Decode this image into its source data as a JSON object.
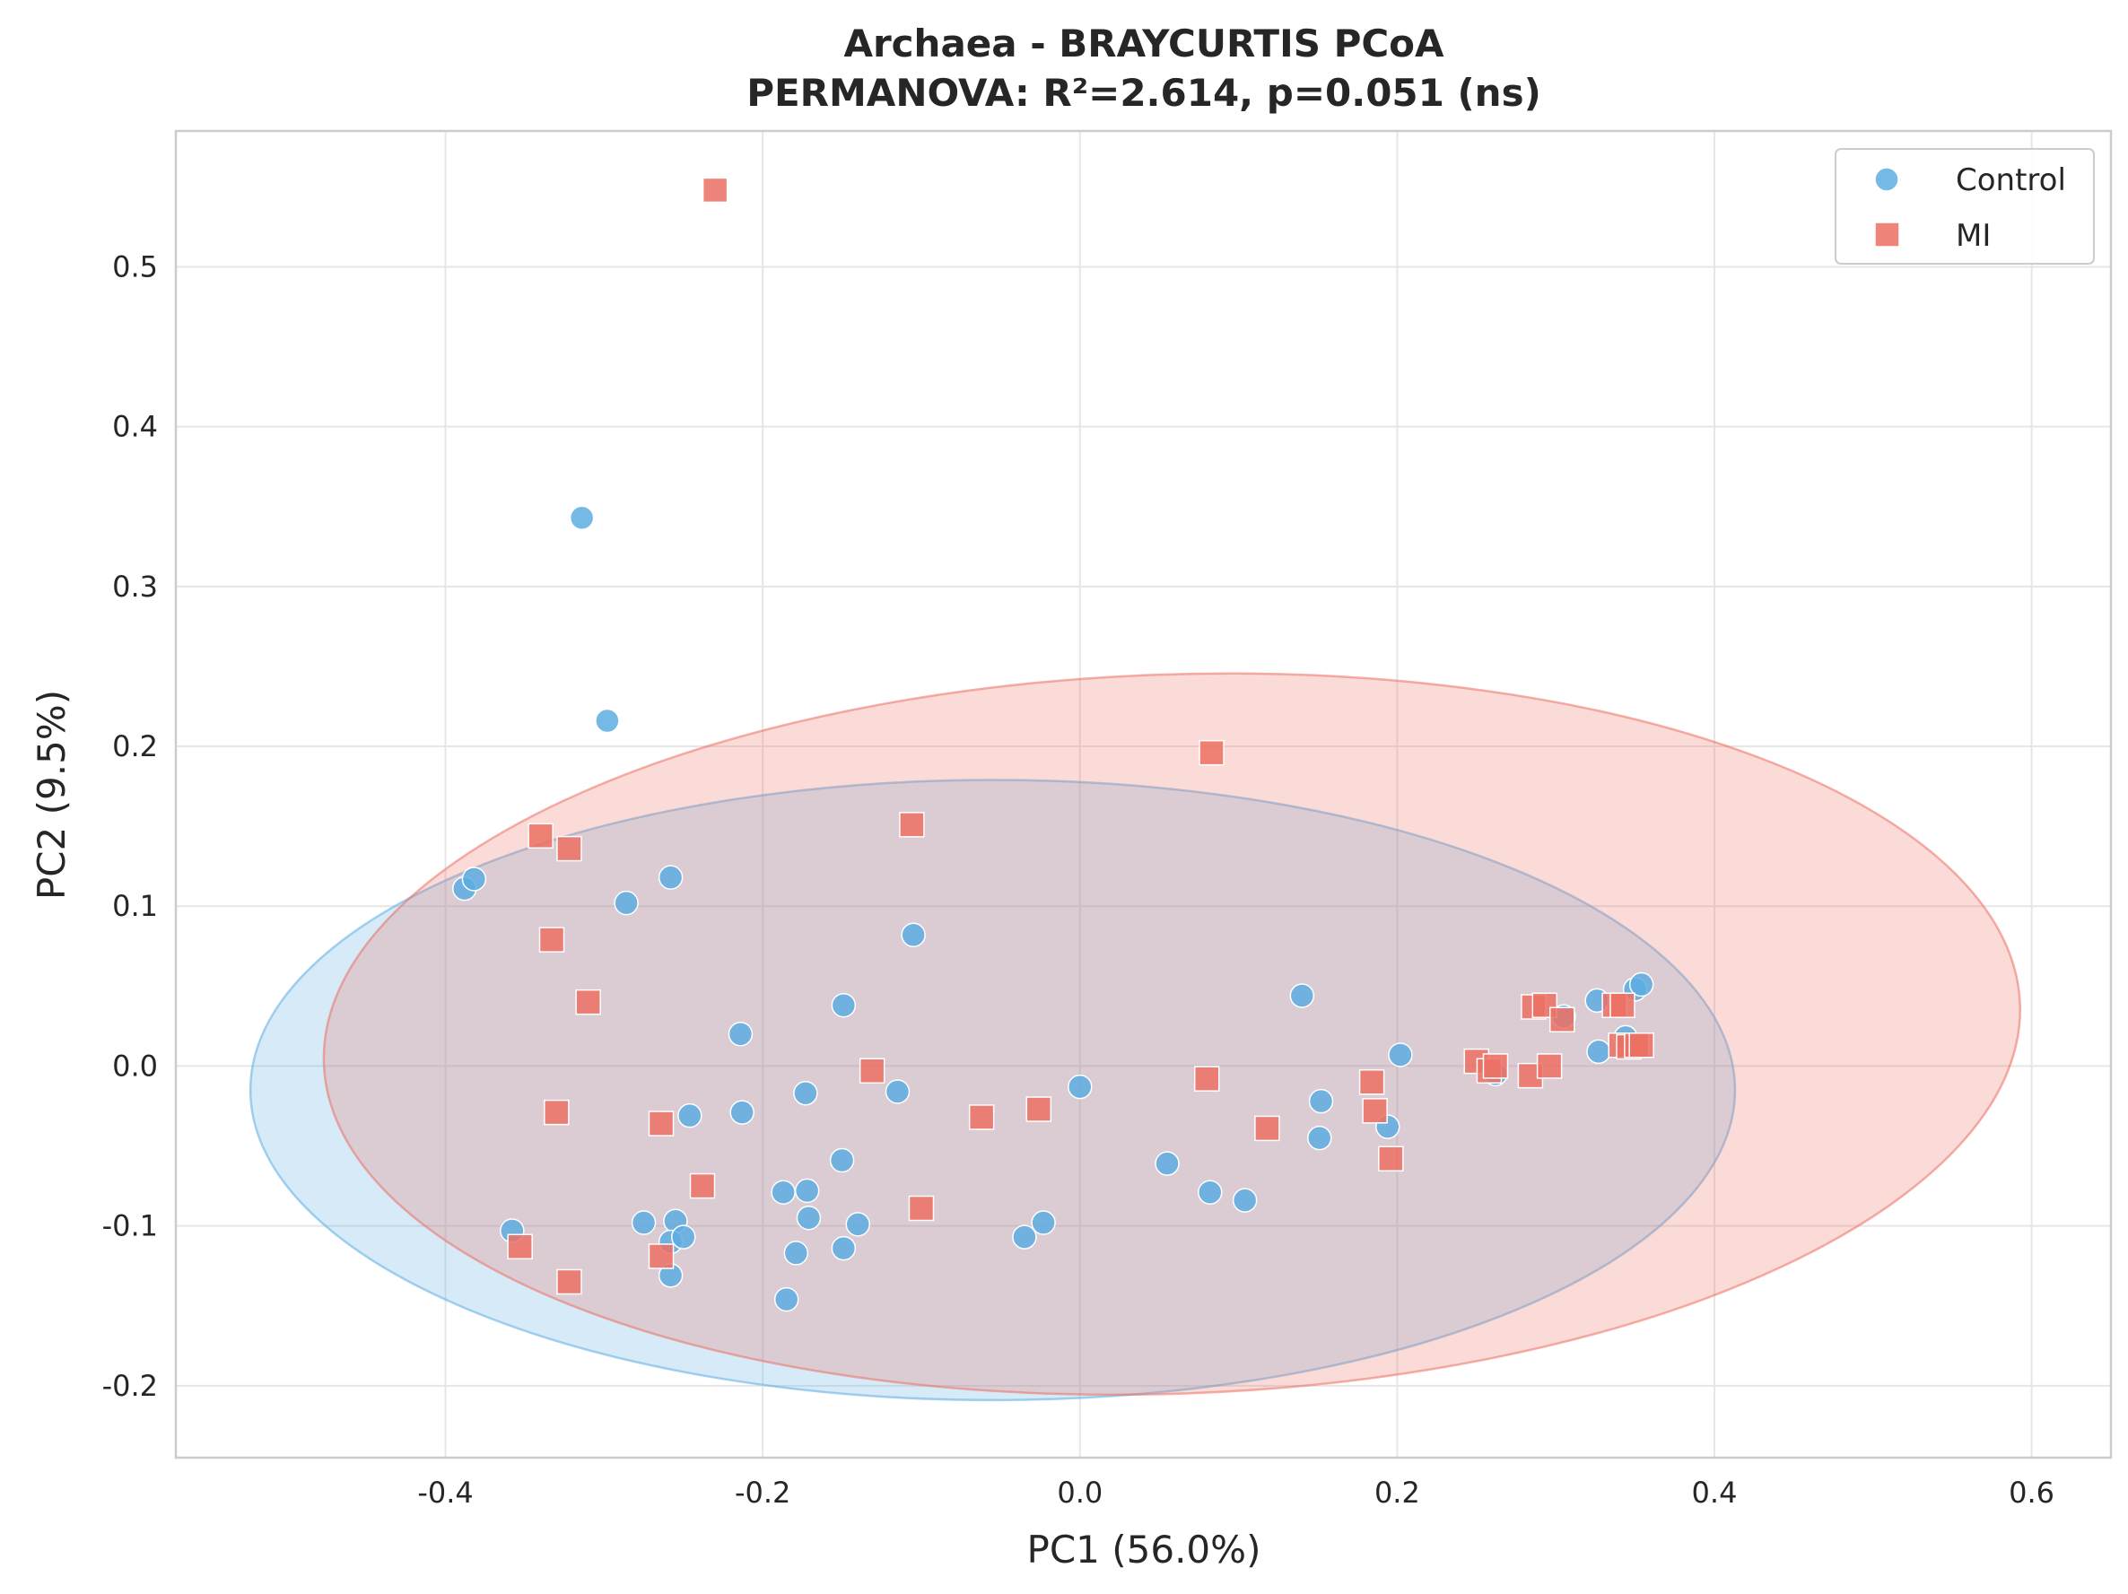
{
  "chart_data": {
    "type": "scatter",
    "title": "Archaea - BRAYCURTIS PCoA",
    "subtitle": "PERMANOVA: R²=2.614, p=0.051 (ns)",
    "xlabel": "PC1 (56.0%)",
    "ylabel": "PC2 (9.5%)",
    "xlim": [
      -0.57,
      0.65
    ],
    "ylim": [
      -0.245,
      0.585
    ],
    "xticks": [
      -0.4,
      -0.2,
      0.0,
      0.2,
      0.4,
      0.6
    ],
    "yticks": [
      -0.2,
      -0.1,
      0.0,
      0.1,
      0.2,
      0.3,
      0.4,
      0.5
    ],
    "xtick_labels": [
      "-0.4",
      "-0.2",
      "0.0",
      "0.2",
      "0.4",
      "0.6"
    ],
    "ytick_labels": [
      "-0.2",
      "-0.1",
      "0.0",
      "0.1",
      "0.2",
      "0.3",
      "0.4",
      "0.5"
    ],
    "grid": true,
    "legend_position": "top-right",
    "series": [
      {
        "name": "Control",
        "marker": "circle",
        "color": "#5DADE2",
        "points": [
          [
            -0.314,
            0.343
          ],
          [
            -0.298,
            0.216
          ],
          [
            -0.388,
            0.111
          ],
          [
            -0.382,
            0.117
          ],
          [
            -0.286,
            0.102
          ],
          [
            -0.258,
            0.118
          ],
          [
            -0.105,
            0.082
          ],
          [
            -0.149,
            0.038
          ],
          [
            -0.214,
            0.02
          ],
          [
            -0.173,
            -0.017
          ],
          [
            -0.115,
            -0.016
          ],
          [
            -0.246,
            -0.031
          ],
          [
            -0.213,
            -0.029
          ],
          [
            -0.15,
            -0.059
          ],
          [
            -0.172,
            -0.078
          ],
          [
            -0.187,
            -0.079
          ],
          [
            -0.171,
            -0.095
          ],
          [
            -0.14,
            -0.099
          ],
          [
            -0.275,
            -0.098
          ],
          [
            -0.255,
            -0.097
          ],
          [
            -0.258,
            -0.11
          ],
          [
            -0.25,
            -0.107
          ],
          [
            -0.179,
            -0.117
          ],
          [
            -0.149,
            -0.114
          ],
          [
            -0.258,
            -0.131
          ],
          [
            -0.185,
            -0.146
          ],
          [
            -0.358,
            -0.103
          ],
          [
            -0.035,
            -0.107
          ],
          [
            -0.023,
            -0.098
          ],
          [
            0.0,
            -0.013
          ],
          [
            0.055,
            -0.061
          ],
          [
            0.082,
            -0.079
          ],
          [
            0.104,
            -0.084
          ],
          [
            0.14,
            0.044
          ],
          [
            0.151,
            -0.045
          ],
          [
            0.152,
            -0.022
          ],
          [
            0.194,
            -0.038
          ],
          [
            0.202,
            0.007
          ],
          [
            0.262,
            -0.005
          ],
          [
            0.305,
            0.031
          ],
          [
            0.326,
            0.041
          ],
          [
            0.327,
            0.009
          ],
          [
            0.344,
            0.018
          ],
          [
            0.35,
            0.048
          ],
          [
            0.354,
            0.051
          ]
        ]
      },
      {
        "name": "MI",
        "marker": "square",
        "color": "#EC7063",
        "points": [
          [
            -0.23,
            0.548
          ],
          [
            0.083,
            0.196
          ],
          [
            -0.106,
            0.151
          ],
          [
            -0.34,
            0.144
          ],
          [
            -0.322,
            0.136
          ],
          [
            -0.333,
            0.079
          ],
          [
            -0.31,
            0.04
          ],
          [
            -0.131,
            -0.003
          ],
          [
            -0.33,
            -0.029
          ],
          [
            -0.264,
            -0.036
          ],
          [
            -0.238,
            -0.075
          ],
          [
            -0.062,
            -0.032
          ],
          [
            -0.026,
            -0.027
          ],
          [
            -0.1,
            -0.089
          ],
          [
            -0.264,
            -0.119
          ],
          [
            -0.353,
            -0.113
          ],
          [
            -0.322,
            -0.135
          ],
          [
            0.08,
            -0.008
          ],
          [
            0.118,
            -0.039
          ],
          [
            0.184,
            -0.01
          ],
          [
            0.186,
            -0.028
          ],
          [
            0.196,
            -0.058
          ],
          [
            0.25,
            0.003
          ],
          [
            0.258,
            -0.003
          ],
          [
            0.262,
            0.0
          ],
          [
            0.284,
            -0.006
          ],
          [
            0.286,
            0.037
          ],
          [
            0.293,
            0.038
          ],
          [
            0.296,
            0.0
          ],
          [
            0.304,
            0.029
          ],
          [
            0.337,
            0.038
          ],
          [
            0.342,
            0.038
          ],
          [
            0.341,
            0.013
          ],
          [
            0.346,
            0.012
          ],
          [
            0.351,
            0.013
          ],
          [
            0.354,
            0.013
          ]
        ]
      }
    ],
    "ellipses": [
      {
        "name": "Control",
        "center": [
          -0.055,
          -0.015
        ],
        "rx": 0.468,
        "ry": 0.194,
        "rotation_deg": 0,
        "color": "#5DADE2"
      },
      {
        "name": "MI",
        "center": [
          0.058,
          0.02
        ],
        "rx": 0.535,
        "ry": 0.225,
        "rotation_deg": -2,
        "color": "#EC7063"
      }
    ]
  }
}
